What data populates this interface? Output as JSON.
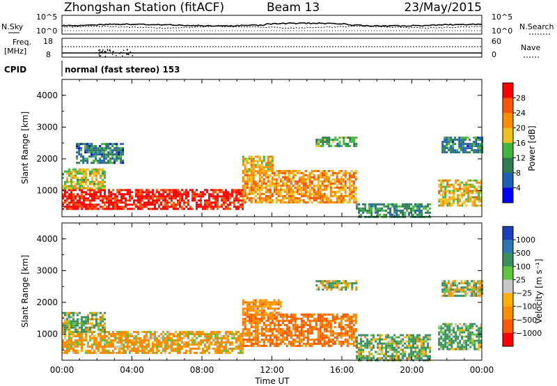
{
  "header": {
    "station": "Zhongshan Station (fitACF)",
    "beam": "Beam 13",
    "date": "23/May/2015"
  },
  "noise_panel": {
    "left_label": "N.Sky",
    "left_ticks": [
      "10^5",
      "10^0"
    ],
    "right_label": "N.Search",
    "right_ticks": [
      "10^5",
      "10^0"
    ]
  },
  "freq_panel": {
    "left_label_1": "Freq.",
    "left_label_2": "[MHz]",
    "left_ticks": [
      "18",
      "8"
    ],
    "right_label": "Nave",
    "right_ticks": [
      "60",
      "0"
    ]
  },
  "cpid_panel": {
    "label": "CPID",
    "value": "normal (fast stereo) 153"
  },
  "xaxis": {
    "title": "Time UT",
    "ticks": [
      "00:00",
      "04:00",
      "08:00",
      "12:00",
      "16:00",
      "20:00",
      "00:00"
    ]
  },
  "power_panel": {
    "ylabel": "Slant Range [km]",
    "yticks": [
      "1000",
      "2000",
      "3000",
      "4000"
    ],
    "colorbar_label": "Power [dB]",
    "colorbar_ticks": [
      "4",
      "8",
      "12",
      "16",
      "20",
      "24",
      "28"
    ],
    "colors": [
      "#0000ff",
      "#1f5fb4",
      "#2e7d4f",
      "#41b83c",
      "#f0c020",
      "#ff8c00",
      "#ff5500",
      "#ff0000"
    ]
  },
  "velocity_panel": {
    "ylabel": "Slant Range [km]",
    "yticks": [
      "1000",
      "2000",
      "3000",
      "4000"
    ],
    "colorbar_label": "Velocity [m s⁻¹]",
    "colorbar_ticks": [
      "1000",
      "500",
      "100",
      "25",
      "−25",
      "−100",
      "−500",
      "−1000"
    ],
    "colors": [
      "#1a3fb8",
      "#2f74b5",
      "#3a8f5e",
      "#5dc63a",
      "#c8c8c8",
      "#ffb000",
      "#ff8c00",
      "#ff5a00",
      "#ff0000"
    ]
  },
  "chart_data": [
    {
      "type": "heatmap",
      "title": "",
      "quantity": "Power",
      "unit": "dB",
      "xlabel": "Time UT",
      "ylabel": "Slant Range [km]",
      "xlim": [
        0,
        24
      ],
      "ylim": [
        180,
        4500
      ],
      "clim": [
        0,
        30
      ],
      "blobs": [
        {
          "t": [
            0.0,
            10.3
          ],
          "r": [
            400,
            1050
          ],
          "power": 28
        },
        {
          "t": [
            0.0,
            2.5
          ],
          "r": [
            1050,
            1700
          ],
          "power": 16
        },
        {
          "t": [
            10.3,
            16.8
          ],
          "r": [
            600,
            1650
          ],
          "power": 20
        },
        {
          "t": [
            10.3,
            12.0
          ],
          "r": [
            1600,
            2100
          ],
          "power": 18
        },
        {
          "t": [
            16.8,
            21.0
          ],
          "r": [
            200,
            600
          ],
          "power": 10
        },
        {
          "t": [
            21.5,
            24.0
          ],
          "r": [
            500,
            1350
          ],
          "power": 18
        },
        {
          "t": [
            21.7,
            24.0
          ],
          "r": [
            2200,
            2700
          ],
          "power": 8
        },
        {
          "t": [
            0.8,
            3.5
          ],
          "r": [
            1900,
            2500
          ],
          "power": 8
        },
        {
          "t": [
            14.5,
            16.8
          ],
          "r": [
            2400,
            2700
          ],
          "power": 12
        }
      ]
    },
    {
      "type": "heatmap",
      "title": "",
      "quantity": "Velocity",
      "unit": "m s^-1",
      "xlabel": "Time UT",
      "ylabel": "Slant Range [km]",
      "xlim": [
        0,
        24
      ],
      "ylim": [
        180,
        4500
      ],
      "clim": [
        -1000,
        1000
      ],
      "blobs": [
        {
          "t": [
            0.0,
            10.3
          ],
          "r": [
            400,
            1100
          ],
          "velocity": -200
        },
        {
          "t": [
            0.0,
            2.5
          ],
          "r": [
            1050,
            1700
          ],
          "velocity": 100
        },
        {
          "t": [
            10.3,
            16.8
          ],
          "r": [
            600,
            1650
          ],
          "velocity": -500
        },
        {
          "t": [
            10.3,
            12.5
          ],
          "r": [
            1600,
            2100
          ],
          "velocity": -300
        },
        {
          "t": [
            16.8,
            21.0
          ],
          "r": [
            200,
            1000
          ],
          "velocity": 150
        },
        {
          "t": [
            21.5,
            24.0
          ],
          "r": [
            500,
            1350
          ],
          "velocity": 200
        },
        {
          "t": [
            21.7,
            24.0
          ],
          "r": [
            2200,
            2700
          ],
          "velocity": 20
        },
        {
          "t": [
            14.5,
            16.8
          ],
          "r": [
            2400,
            2700
          ],
          "velocity": 20
        }
      ]
    }
  ]
}
